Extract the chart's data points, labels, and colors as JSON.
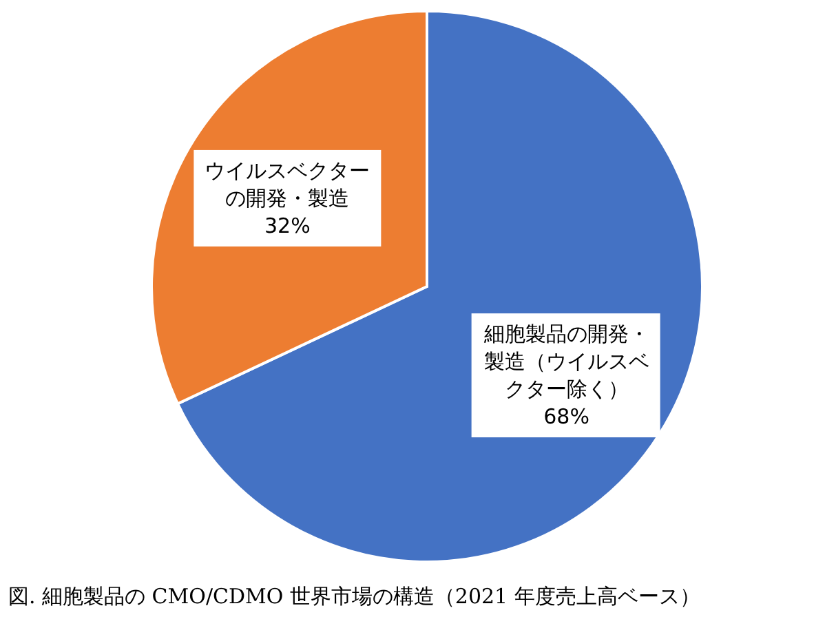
{
  "chart_data": {
    "type": "pie",
    "categories": [
      "細胞製品の開発・製造（ウイルスベクター除く）",
      "ウイルスベクターの開発・製造"
    ],
    "values": [
      68,
      32
    ],
    "value_labels": [
      "68%",
      "32%"
    ],
    "colors": [
      "#4472c4",
      "#ed7d31"
    ],
    "annotations": [
      "図. 細胞製品の CMO/CDMO 世界市場の構造（2021 年度売上高ベース）"
    ]
  }
}
